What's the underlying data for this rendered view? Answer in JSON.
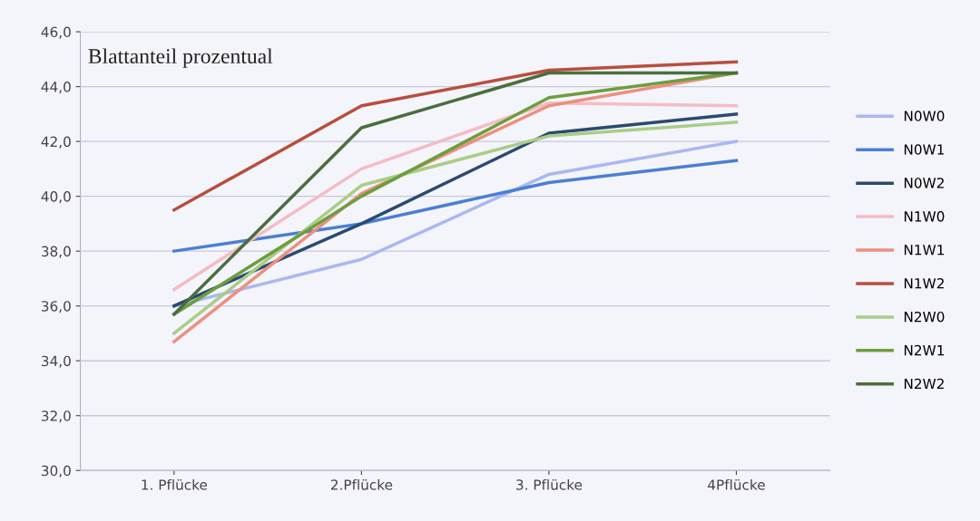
{
  "chart_data": {
    "type": "line",
    "title": "Blattanteil prozentual",
    "categories": [
      "1. Pflücke",
      "2.Pflücke",
      "3. Pflücke",
      "4Pflücke"
    ],
    "series": [
      {
        "name": "N0W0",
        "color": "#a9b8f0",
        "values": [
          36.0,
          37.7,
          40.8,
          42.0
        ]
      },
      {
        "name": "N0W1",
        "color": "#4a7fd4",
        "values": [
          38.0,
          39.0,
          40.5,
          41.3
        ]
      },
      {
        "name": "N0W2",
        "color": "#2a4a70",
        "values": [
          36.0,
          39.0,
          42.3,
          43.0
        ]
      },
      {
        "name": "N1W0",
        "color": "#f4bcc4",
        "values": [
          36.6,
          41.0,
          43.4,
          43.3
        ]
      },
      {
        "name": "N1W1",
        "color": "#ec8f7e",
        "values": [
          34.7,
          40.1,
          43.3,
          44.5
        ]
      },
      {
        "name": "N1W2",
        "color": "#b84e3e",
        "values": [
          39.5,
          43.3,
          44.6,
          44.9
        ]
      },
      {
        "name": "N2W0",
        "color": "#a9cd86",
        "values": [
          35.0,
          40.4,
          42.2,
          42.7
        ]
      },
      {
        "name": "N2W1",
        "color": "#6c9e3c",
        "values": [
          35.7,
          40.0,
          43.6,
          44.5
        ]
      },
      {
        "name": "N2W2",
        "color": "#4a6e3c",
        "values": [
          35.7,
          42.5,
          44.5,
          44.5
        ]
      }
    ],
    "ylim": [
      30,
      46
    ],
    "yticks": [
      {
        "value": 30,
        "label": "30,0"
      },
      {
        "value": 32,
        "label": "32,0"
      },
      {
        "value": 34,
        "label": "34,0"
      },
      {
        "value": 36,
        "label": "36,0"
      },
      {
        "value": 38,
        "label": "38,0"
      },
      {
        "value": 40,
        "label": "40,0"
      },
      {
        "value": 42,
        "label": "42,0"
      },
      {
        "value": 44,
        "label": "44,0"
      },
      {
        "value": 46,
        "label": "46,0"
      }
    ],
    "grid": "y",
    "legend": "right",
    "marker": "none",
    "line_style": "solid"
  }
}
